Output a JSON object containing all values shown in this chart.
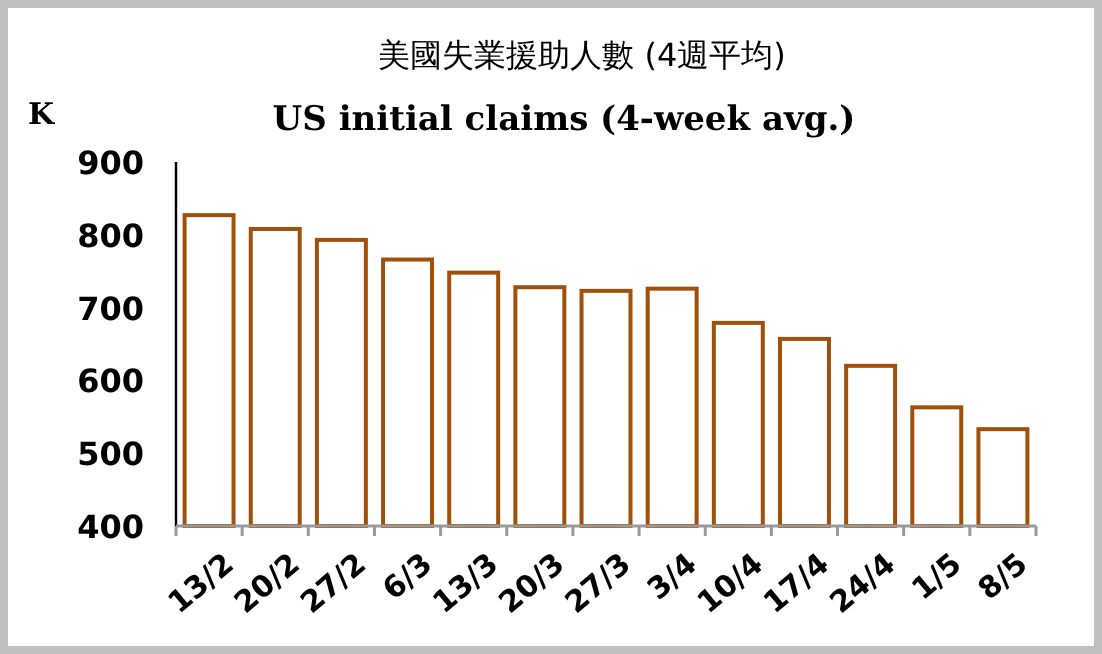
{
  "chart_data": {
    "type": "bar",
    "title": "美國失業援助人數 (4週平均)",
    "subtitle": "US initial claims (4-week avg.)",
    "ylabel": "K",
    "categories": [
      "13/2",
      "20/2",
      "27/2",
      "6/3",
      "13/3",
      "20/3",
      "27/3",
      "3/4",
      "10/4",
      "17/4",
      "24/4",
      "1/5",
      "8/5"
    ],
    "series": [
      {
        "color": "#a0500a",
        "values": [
          827,
          808,
          793,
          766,
          748,
          728,
          723,
          726,
          679,
          657,
          620,
          563,
          533
        ]
      }
    ],
    "ylim": [
      400,
      900
    ],
    "yticks": [
      400,
      500,
      600,
      700,
      800,
      900
    ]
  }
}
